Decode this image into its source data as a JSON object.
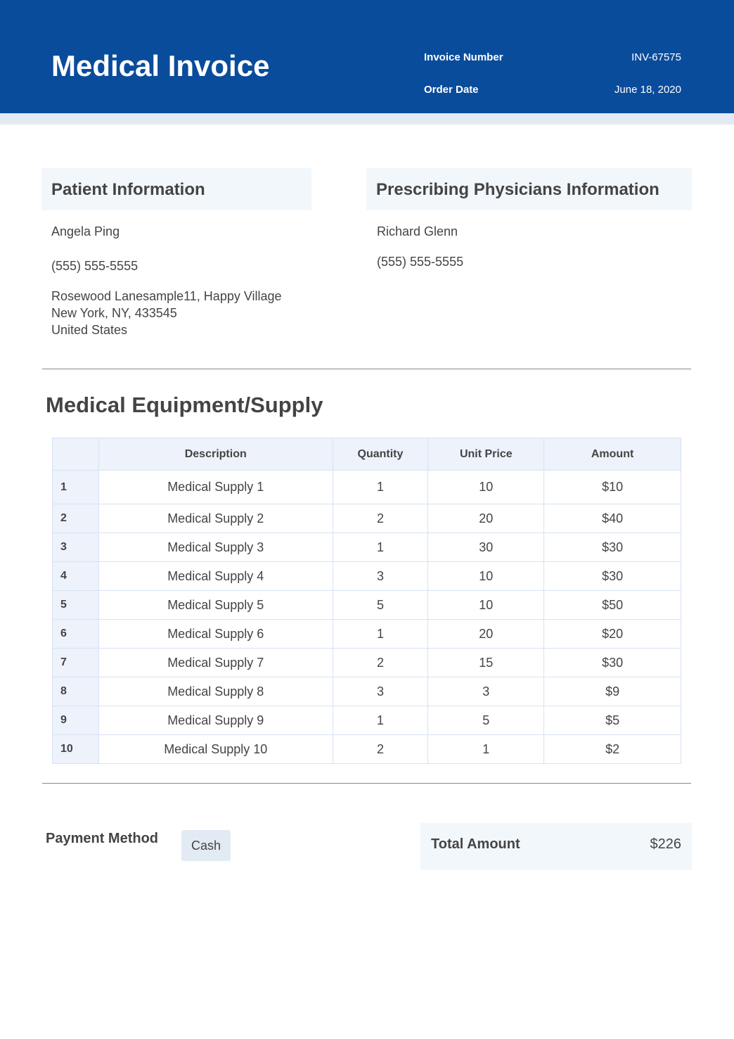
{
  "header": {
    "title": "Medical Invoice",
    "invoice_number_label": "Invoice Number",
    "invoice_number": "INV-67575",
    "order_date_label": "Order Date",
    "order_date": "June 18, 2020"
  },
  "patient": {
    "heading": "Patient Information",
    "name": "Angela Ping",
    "phone": "(555) 555-5555",
    "address_line1": "Rosewood Lanesample11, Happy Village",
    "address_line2": "New York, NY, 433545",
    "address_line3": "United States"
  },
  "physician": {
    "heading": "Prescribing Physicians Information",
    "name": "Richard Glenn",
    "phone": "(555) 555-5555"
  },
  "items": {
    "heading": "Medical Equipment/Supply",
    "columns": [
      "",
      "Description",
      "Quantity",
      "Unit Price",
      "Amount"
    ],
    "rows": [
      [
        "1",
        "Medical Supply 1",
        "1",
        "10",
        "$10"
      ],
      [
        "2",
        "Medical Supply 2",
        "2",
        "20",
        "$40"
      ],
      [
        "3",
        "Medical Supply 3",
        "1",
        "30",
        "$30"
      ],
      [
        "4",
        "Medical Supply 4",
        "3",
        "10",
        "$30"
      ],
      [
        "5",
        "Medical Supply 5",
        "5",
        "10",
        "$50"
      ],
      [
        "6",
        "Medical Supply 6",
        "1",
        "20",
        "$20"
      ],
      [
        "7",
        "Medical Supply 7",
        "2",
        "15",
        "$30"
      ],
      [
        "8",
        "Medical Supply 8",
        "3",
        "3",
        "$9"
      ],
      [
        "9",
        "Medical Supply 9",
        "1",
        "5",
        "$5"
      ],
      [
        "10",
        "Medical Supply 10",
        "2",
        "1",
        "$2"
      ]
    ]
  },
  "payment": {
    "label": "Payment Method",
    "method": "Cash"
  },
  "total": {
    "label": "Total Amount",
    "value": "$226"
  },
  "colors": {
    "brand": "#0a4c9c",
    "band": "#e2eaf3"
  }
}
